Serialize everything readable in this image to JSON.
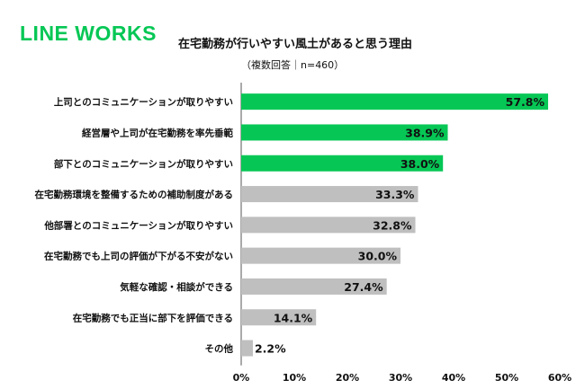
{
  "brand": {
    "logo_text": "LINE WORKS",
    "accent": "#06c755"
  },
  "chart_data": {
    "type": "bar",
    "orientation": "horizontal",
    "title": "在宅勤務が行いやすい風土があると思う理由",
    "subtitle": "（複数回答｜n=460）",
    "categories": [
      "上司とのコミュニケーションが取りやすい",
      "経営層や上司が在宅勤務を率先垂範",
      "部下とのコミュニケーションが取りやすい",
      "在宅勤務環境を整備するための補助制度がある",
      "他部署とのコミュニケーションが取りやすい",
      "在宅勤務でも上司の評価が下がる不安がない",
      "気軽な確認・相談ができる",
      "在宅勤務でも正当に部下を評価できる",
      "その他"
    ],
    "values": [
      57.8,
      38.9,
      38.0,
      33.3,
      32.8,
      30.0,
      27.4,
      14.1,
      2.2
    ],
    "value_labels": [
      "57.8%",
      "38.9%",
      "38.0%",
      "33.3%",
      "32.8%",
      "30.0%",
      "27.4%",
      "14.1%",
      "2.2%"
    ],
    "highlight_count": 3,
    "colors": {
      "highlight": "#06c755",
      "other": "#bfbfbf"
    },
    "xlim": [
      0,
      60
    ],
    "xticks": [
      "0%",
      "10%",
      "20%",
      "30%",
      "40%",
      "50%",
      "60%"
    ],
    "xlabel": "",
    "ylabel": "",
    "grid": false,
    "legend": "none"
  }
}
